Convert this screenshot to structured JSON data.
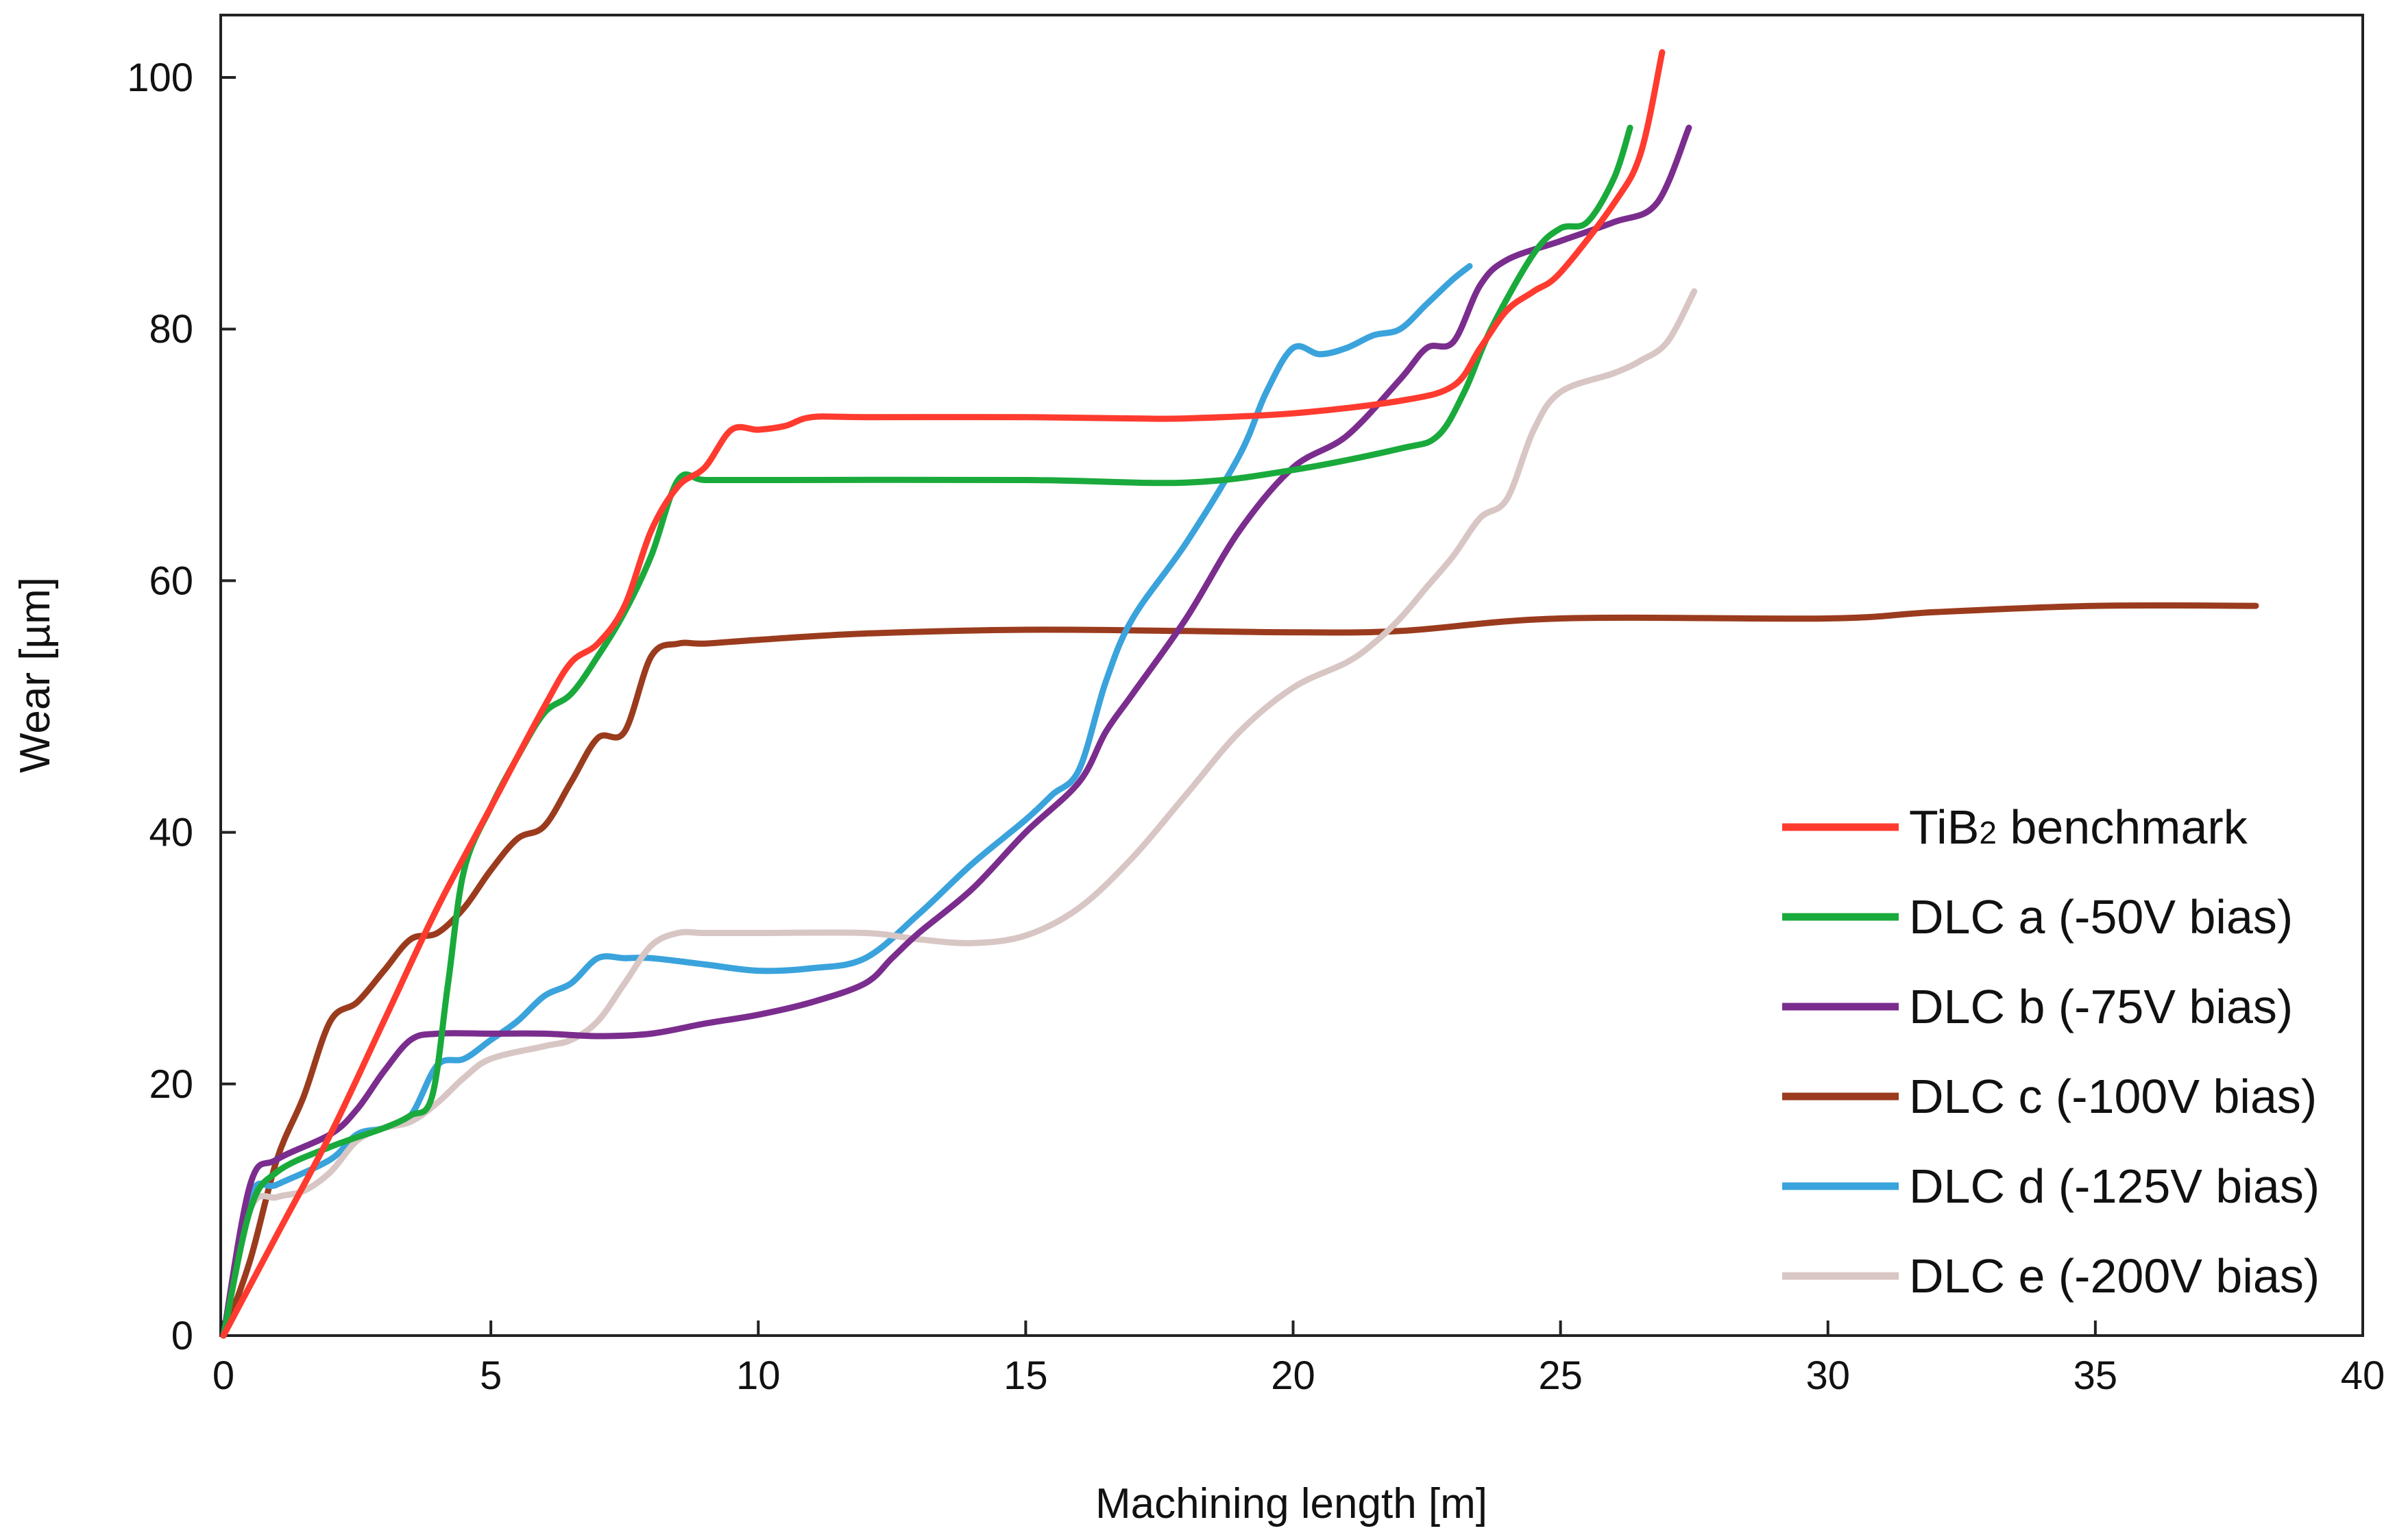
{
  "chart_data": {
    "type": "line",
    "title": "",
    "xlabel": "Machining length [m]",
    "ylabel": "Wear [µm]",
    "xlim": [
      0,
      40
    ],
    "ylim": [
      0,
      105
    ],
    "xticks": [
      0,
      5,
      10,
      15,
      20,
      25,
      30,
      35,
      40
    ],
    "yticks": [
      0,
      20,
      40,
      60,
      80,
      100
    ],
    "grid": false,
    "legend_position": "bottom-right",
    "series": [
      {
        "name": "TiB2 benchmark",
        "legend_main": "TiB",
        "legend_sub": "2",
        "legend_rest": " benchmark",
        "color": "#ff3b2f",
        "x": [
          0,
          1,
          2,
          3,
          4,
          5,
          6,
          6.5,
          7,
          7.5,
          8,
          8.5,
          9,
          9.5,
          10,
          10.5,
          11,
          12,
          15,
          17,
          18,
          20,
          22,
          23,
          23.5,
          24,
          24.5,
          25,
          26,
          26.5,
          26.9
        ],
        "y": [
          0,
          8,
          16,
          25,
          34,
          42,
          50,
          53.5,
          55,
          58,
          64,
          67.5,
          69,
          72,
          72,
          72.3,
          73,
          73,
          73,
          72.9,
          72.9,
          73.3,
          74.3,
          75.5,
          78.5,
          81.5,
          83,
          84.5,
          90,
          94,
          102
        ]
      },
      {
        "name": "DLC a (-50V bias)",
        "color": "#1aaa3c",
        "x": [
          0,
          0.5,
          1,
          2,
          3,
          3.5,
          3.9,
          4.2,
          4.5,
          5,
          5.5,
          6,
          6.5,
          7,
          7.5,
          8,
          8.5,
          9,
          10,
          15,
          18,
          20,
          22,
          22.7,
          23.2,
          23.7,
          24.5,
          25,
          25.5,
          26,
          26.3
        ],
        "y": [
          0,
          10,
          13,
          15,
          16.5,
          17.5,
          19,
          28,
          37,
          42,
          46,
          49.5,
          51,
          54,
          57.5,
          62,
          68,
          68,
          68,
          68,
          67.8,
          68.8,
          70.5,
          71.5,
          75,
          80,
          86,
          88,
          88.5,
          92,
          96
        ]
      },
      {
        "name": "DLC b (-75V bias)",
        "color": "#7b2d8e",
        "x": [
          0,
          0.5,
          1,
          2,
          2.5,
          3,
          3.5,
          4,
          5,
          6,
          7,
          8,
          9,
          10,
          11,
          12,
          12.5,
          13,
          14,
          15,
          16,
          16.5,
          17,
          18,
          19,
          20,
          21,
          22,
          22.5,
          23,
          23.5,
          24,
          25,
          26,
          26.8,
          27.4
        ],
        "y": [
          0,
          12,
          14,
          16,
          18,
          21,
          23.5,
          24,
          24,
          24,
          23.8,
          24,
          24.8,
          25.5,
          26.5,
          28,
          30,
          32,
          35.5,
          40,
          44,
          48,
          51,
          57,
          64,
          69,
          71.5,
          76,
          78.5,
          79,
          83.5,
          85.5,
          87,
          88.5,
          90,
          96
        ]
      },
      {
        "name": "DLC c (-100V bias)",
        "color": "#9b3b1e",
        "x": [
          0,
          0.5,
          1,
          1.5,
          2,
          2.5,
          3,
          3.5,
          4,
          4.5,
          5,
          5.5,
          6,
          6.5,
          7,
          7.5,
          8,
          8.5,
          9,
          10,
          12,
          15,
          18,
          20,
          22,
          25,
          30,
          32,
          35,
          38
        ],
        "y": [
          0,
          6,
          14,
          19,
          25,
          26.5,
          29,
          31.5,
          32,
          34,
          37,
          39.5,
          40.5,
          44,
          47.5,
          48,
          54,
          55,
          55,
          55.3,
          55.8,
          56.1,
          56,
          55.9,
          56,
          57,
          57,
          57.5,
          58,
          58
        ]
      },
      {
        "name": "DLC d (-125V bias)",
        "color": "#3aa3dc",
        "x": [
          0,
          0.5,
          1,
          2,
          2.5,
          3,
          3.5,
          4,
          4.5,
          5,
          5.5,
          6,
          6.5,
          7,
          7.5,
          8,
          9,
          10,
          11,
          12,
          13,
          14,
          15,
          15.5,
          16,
          16.5,
          17,
          18,
          19,
          19.5,
          20,
          20.5,
          21,
          21.5,
          22,
          22.5,
          23,
          23.3
        ],
        "y": [
          0,
          11,
          12,
          14,
          16,
          16.5,
          17.5,
          21.5,
          22,
          23.5,
          25,
          27,
          28,
          30,
          30,
          30,
          29.5,
          29,
          29.2,
          30,
          33.5,
          37.5,
          41,
          43,
          45,
          52,
          57,
          63,
          70,
          75,
          78.5,
          78,
          78.5,
          79.5,
          80,
          82,
          84,
          85
        ]
      },
      {
        "name": "DLC e (-200V bias)",
        "color": "#d8c6c4",
        "x": [
          0,
          0.5,
          1,
          1.5,
          2,
          2.5,
          3,
          3.5,
          4,
          4.5,
          5,
          6,
          6.5,
          7,
          7.5,
          8,
          8.5,
          9,
          10,
          12,
          13,
          14,
          15,
          16,
          17,
          18,
          19,
          20,
          21,
          21.5,
          22,
          22.5,
          23,
          23.5,
          24,
          24.5,
          25,
          26,
          26.5,
          27,
          27.5
        ],
        "y": [
          0,
          10,
          11,
          11.5,
          13,
          15.5,
          16.5,
          17,
          18.5,
          20.5,
          22,
          23,
          23.5,
          25,
          28,
          31,
          32,
          32,
          32,
          32,
          31.5,
          31.2,
          31.8,
          34,
          38,
          43,
          48,
          51.5,
          53.5,
          55,
          57,
          59.5,
          62,
          65,
          66.5,
          72,
          75,
          76.5,
          77.5,
          79,
          83
        ]
      }
    ]
  }
}
